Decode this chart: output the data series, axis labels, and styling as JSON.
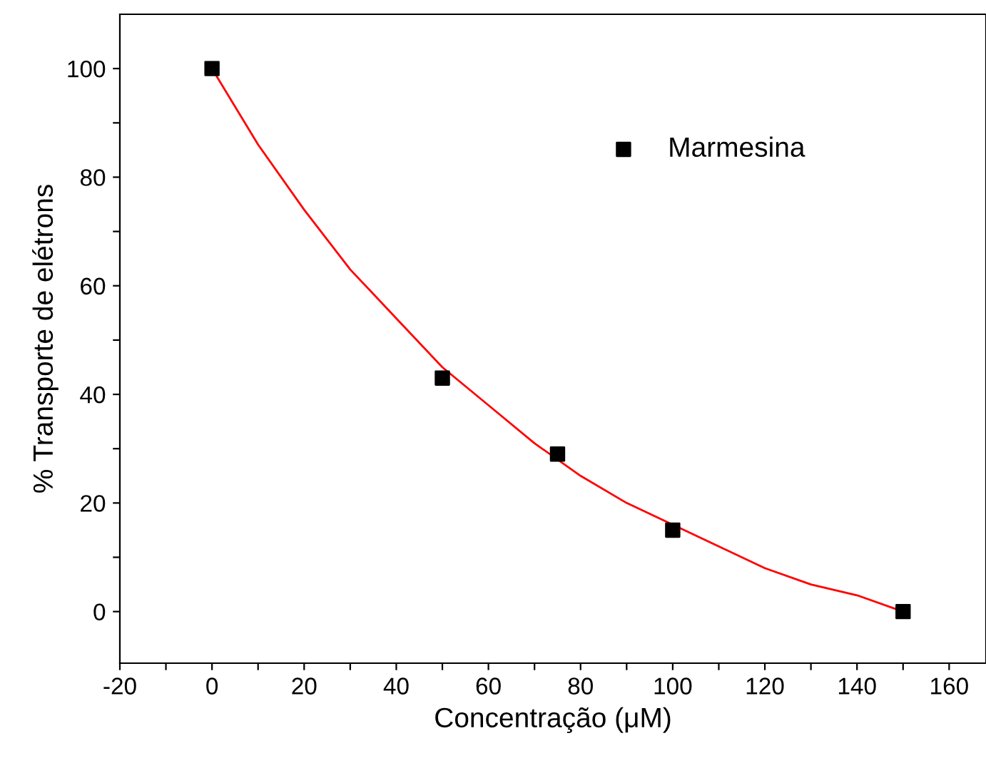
{
  "chart_data": {
    "type": "scatter",
    "xlabel": "Concentração (μM)",
    "ylabel": "% Transporte de elétrons",
    "series": [
      {
        "name": "Marmesina",
        "color": "#000000",
        "marker": "square",
        "x": [
          0,
          50,
          75,
          100,
          150
        ],
        "values": [
          100,
          43,
          29,
          15,
          0
        ]
      },
      {
        "type": "line",
        "color": "#ff0000",
        "marker": "none",
        "line_style": "solid",
        "x": [
          0,
          10,
          20,
          30,
          40,
          50,
          60,
          70,
          80,
          90,
          100,
          110,
          120,
          130,
          140,
          150
        ],
        "values": [
          100,
          86,
          74,
          63,
          54,
          45,
          38,
          31,
          25,
          20,
          16,
          12,
          8,
          5,
          3,
          0
        ]
      }
    ],
    "xlim": [
      -20,
      168
    ],
    "ylim": [
      -9.5,
      110
    ],
    "xticks": [
      -20,
      {
        "value": -10,
        "label": null
      },
      0,
      {
        "value": 10,
        "label": null
      },
      20,
      {
        "value": 30,
        "label": null
      },
      40,
      {
        "value": 50,
        "label": null
      },
      60,
      {
        "value": 70,
        "label": null
      },
      80,
      {
        "value": 90,
        "label": null
      },
      100,
      {
        "value": 110,
        "label": null
      },
      120,
      {
        "value": 130,
        "label": null
      },
      140,
      {
        "value": 150,
        "label": null
      },
      160
    ],
    "yticks": [
      0,
      {
        "value": 10,
        "label": null
      },
      20,
      {
        "value": 30,
        "label": null
      },
      40,
      {
        "value": 50,
        "label": null
      },
      60,
      {
        "value": 70,
        "label": null
      },
      80,
      {
        "value": 90,
        "label": null
      },
      100
    ],
    "grid": false,
    "legend": "top right"
  }
}
